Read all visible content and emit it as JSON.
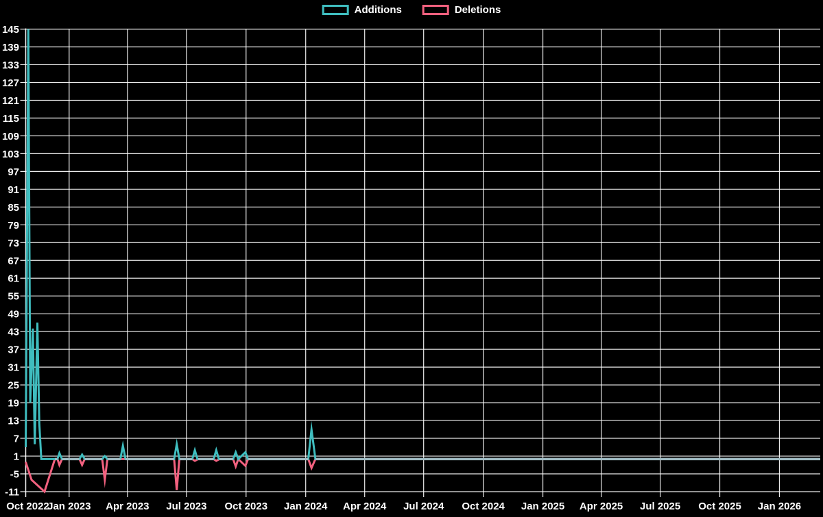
{
  "chart_data": {
    "type": "line",
    "title": "",
    "background_color": "#000000",
    "text_color": "#ffffff",
    "grid_color": "#ffffff",
    "overlap_line_color": "#9fbac2",
    "legend": {
      "position": "top",
      "items": [
        {
          "label": "Additions",
          "color": "#3fbdbf"
        },
        {
          "label": "Deletions",
          "color": "#f2617f"
        }
      ]
    },
    "axis": {
      "y": {
        "min": -11,
        "max": 145,
        "step": 6,
        "ticks": [
          145,
          139,
          133,
          127,
          121,
          115,
          109,
          103,
          97,
          91,
          85,
          79,
          73,
          67,
          61,
          55,
          49,
          43,
          37,
          31,
          25,
          19,
          13,
          7,
          1,
          -5,
          -11
        ]
      },
      "x": {
        "start": "2022-10-26",
        "end": "2026-03-05",
        "ticks": [
          {
            "date": "2022-10-26",
            "label": "Oct 2022"
          },
          {
            "date": "2023-01-01",
            "label": "Jan 2023"
          },
          {
            "date": "2023-04-01",
            "label": "Apr 2023"
          },
          {
            "date": "2023-07-01",
            "label": "Jul 2023"
          },
          {
            "date": "2023-10-01",
            "label": "Oct 2023"
          },
          {
            "date": "2024-01-01",
            "label": "Jan 2024"
          },
          {
            "date": "2024-04-01",
            "label": "Apr 2024"
          },
          {
            "date": "2024-07-01",
            "label": "Jul 2024"
          },
          {
            "date": "2024-10-01",
            "label": "Oct 2024"
          },
          {
            "date": "2025-01-01",
            "label": "Jan 2025"
          },
          {
            "date": "2025-04-01",
            "label": "Apr 2025"
          },
          {
            "date": "2025-07-01",
            "label": "Jul 2025"
          },
          {
            "date": "2025-10-01",
            "label": "Oct 2025"
          },
          {
            "date": "2026-01-01",
            "label": "Jan 2026"
          }
        ]
      }
    },
    "series": [
      {
        "name": "Additions",
        "color": "#3fbdbf",
        "points": [
          [
            "2022-10-26",
            4
          ],
          [
            "2022-10-30",
            145
          ],
          [
            "2022-11-02",
            19
          ],
          [
            "2022-11-06",
            44
          ],
          [
            "2022-11-09",
            5
          ],
          [
            "2022-11-13",
            46
          ],
          [
            "2022-11-16",
            12
          ],
          [
            "2022-11-19",
            0
          ],
          [
            "2022-12-14",
            0
          ],
          [
            "2022-12-17",
            2
          ],
          [
            "2022-12-21",
            0
          ],
          [
            "2023-01-17",
            0
          ],
          [
            "2023-01-21",
            1.5
          ],
          [
            "2023-01-25",
            0
          ],
          [
            "2023-02-21",
            0
          ],
          [
            "2023-02-25",
            1
          ],
          [
            "2023-03-01",
            0
          ],
          [
            "2023-03-21",
            0
          ],
          [
            "2023-03-25",
            4.5
          ],
          [
            "2023-03-29",
            0
          ],
          [
            "2023-06-12",
            0
          ],
          [
            "2023-06-16",
            5
          ],
          [
            "2023-06-20",
            0
          ],
          [
            "2023-07-10",
            0
          ],
          [
            "2023-07-14",
            3
          ],
          [
            "2023-07-18",
            0
          ],
          [
            "2023-08-12",
            0
          ],
          [
            "2023-08-16",
            3
          ],
          [
            "2023-08-20",
            0
          ],
          [
            "2023-09-11",
            0
          ],
          [
            "2023-09-15",
            2.3
          ],
          [
            "2023-09-19",
            0
          ],
          [
            "2023-09-30",
            2.3
          ],
          [
            "2023-10-04",
            0
          ],
          [
            "2024-01-05",
            0
          ],
          [
            "2024-01-10",
            10
          ],
          [
            "2024-01-16",
            0
          ],
          [
            "2026-03-05",
            0
          ]
        ]
      },
      {
        "name": "Deletions",
        "color": "#f2617f",
        "points": [
          [
            "2022-10-26",
            -1
          ],
          [
            "2022-11-04",
            -7
          ],
          [
            "2022-11-24",
            -11
          ],
          [
            "2022-12-10",
            0
          ],
          [
            "2022-12-14",
            0
          ],
          [
            "2022-12-17",
            -2
          ],
          [
            "2022-12-21",
            0
          ],
          [
            "2023-01-17",
            0
          ],
          [
            "2023-01-21",
            -2
          ],
          [
            "2023-01-25",
            0
          ],
          [
            "2023-02-21",
            0
          ],
          [
            "2023-02-25",
            -7
          ],
          [
            "2023-03-01",
            0
          ],
          [
            "2023-06-12",
            0
          ],
          [
            "2023-06-16",
            -10.5
          ],
          [
            "2023-06-20",
            0
          ],
          [
            "2023-07-10",
            0
          ],
          [
            "2023-07-14",
            -0.6
          ],
          [
            "2023-07-19",
            0
          ],
          [
            "2023-08-12",
            0
          ],
          [
            "2023-08-16",
            -0.6
          ],
          [
            "2023-08-21",
            0
          ],
          [
            "2023-09-11",
            0
          ],
          [
            "2023-09-15",
            -2.5
          ],
          [
            "2023-09-19",
            0
          ],
          [
            "2023-09-30",
            -2.3
          ],
          [
            "2023-10-04",
            0
          ],
          [
            "2024-01-05",
            0
          ],
          [
            "2024-01-10",
            -3
          ],
          [
            "2024-01-16",
            0
          ],
          [
            "2026-03-05",
            0
          ]
        ]
      }
    ]
  }
}
